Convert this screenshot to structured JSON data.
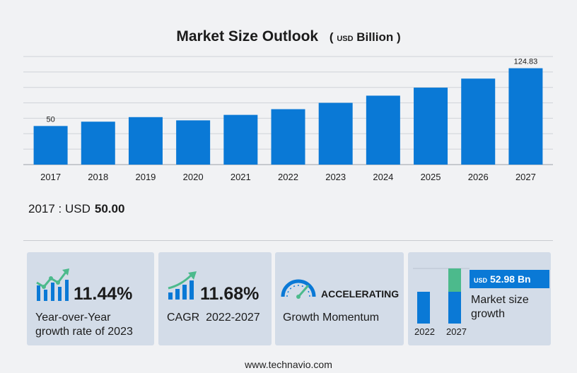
{
  "title": {
    "main": "Market Size Outlook",
    "unit_prefix": "USD",
    "unit": "Billion"
  },
  "chart_data": {
    "type": "bar",
    "categories": [
      "2017",
      "2018",
      "2019",
      "2020",
      "2021",
      "2022",
      "2023",
      "2024",
      "2025",
      "2026",
      "2027"
    ],
    "values": [
      50.0,
      55.6,
      61.5,
      57.3,
      64.4,
      71.8,
      80.0,
      89.3,
      99.7,
      111.4,
      124.83
    ],
    "data_labels": {
      "0": "50",
      "10": "124.83"
    },
    "ylim": [
      0,
      140
    ],
    "grid": true,
    "bar_color": "#0a79d6"
  },
  "base": {
    "label": "2017 : USD",
    "value": "50.00"
  },
  "cards": {
    "yoy": {
      "value": "11.44%",
      "label_line1": "Year-over-Year",
      "label_line2": "growth rate of 2023"
    },
    "cagr": {
      "value": "11.68%",
      "label": "CAGR  2022-2027"
    },
    "momentum": {
      "status": "ACCELERATING",
      "label": "Growth Momentum"
    },
    "growth": {
      "badge_unit": "USD",
      "badge_value": "52.98 Bn",
      "label_line1": "Market size",
      "label_line2": "growth",
      "year_start": "2022",
      "year_end": "2027",
      "colors": {
        "base": "#0a79d6",
        "increment": "#4cba8c"
      }
    }
  },
  "footer": "www.technavio.com",
  "icons": {
    "bar_up": "bar-chart-up-icon",
    "cagr": "growth-arrow-icon",
    "gauge": "speedometer-icon"
  }
}
